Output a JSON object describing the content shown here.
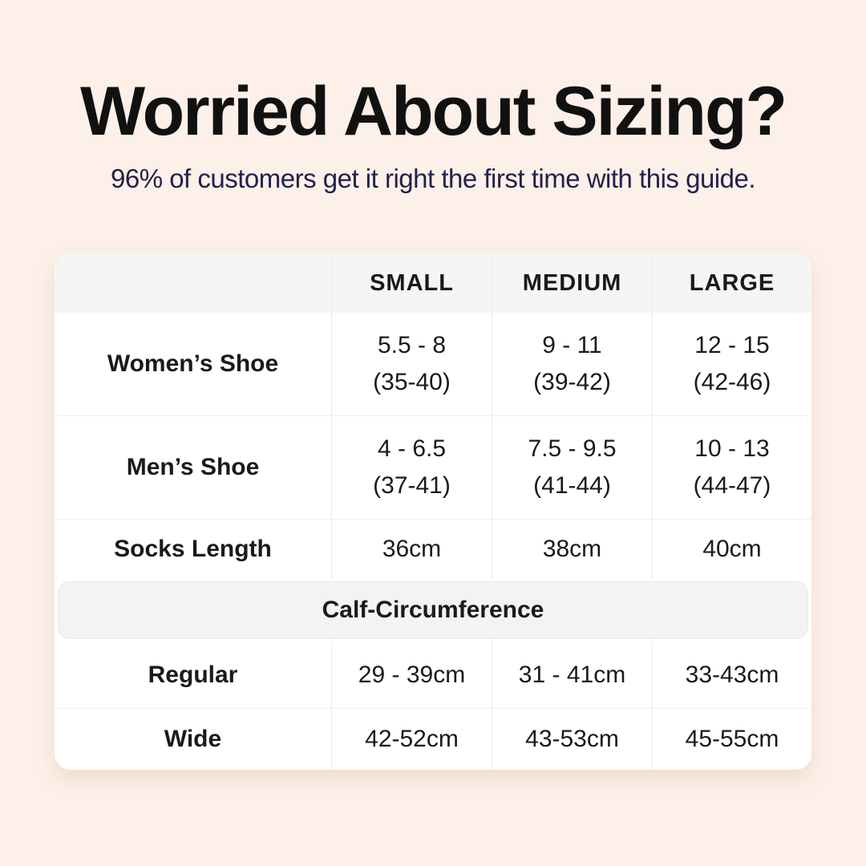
{
  "colors": {
    "page_background": "#fcf0e8",
    "card_background": "#ffffff",
    "header_row_background": "#f5f5f4",
    "section_band_background": "#f3f3f1",
    "title_color": "#111111",
    "subtitle_color": "#24214a",
    "text_color": "#1a1a1a",
    "divider_color": "#ececec"
  },
  "header": {
    "title": "Worried About Sizing?",
    "subtitle": "96% of customers get it right the first time with this guide."
  },
  "table": {
    "column_headers": [
      "",
      "SMALL",
      "MEDIUM",
      "LARGE"
    ],
    "rows": [
      {
        "label": "Women’s Shoe",
        "cells": [
          [
            "5.5 - 8",
            "(35-40)"
          ],
          [
            "9 - 11",
            "(39-42)"
          ],
          [
            "12 - 15",
            "(42-46)"
          ]
        ]
      },
      {
        "label": "Men’s Shoe",
        "cells": [
          [
            "4 - 6.5",
            "(37-41)"
          ],
          [
            "7.5 - 9.5",
            "(41-44)"
          ],
          [
            "10 - 13",
            "(44-47)"
          ]
        ]
      },
      {
        "label": "Socks Length",
        "cells": [
          [
            "36cm"
          ],
          [
            "38cm"
          ],
          [
            "40cm"
          ]
        ]
      }
    ],
    "section_header": "Calf-Circumference",
    "section_rows": [
      {
        "label": "Regular",
        "cells": [
          [
            "29 - 39cm"
          ],
          [
            "31 - 41cm"
          ],
          [
            "33-43cm"
          ]
        ]
      },
      {
        "label": "Wide",
        "cells": [
          [
            "42-52cm"
          ],
          [
            "43-53cm"
          ],
          [
            "45-55cm"
          ]
        ]
      }
    ]
  },
  "chart_data": {
    "type": "table",
    "title": "Worried About Sizing?",
    "subtitle": "96% of customers get it right the first time with this guide.",
    "columns": [
      "",
      "SMALL",
      "MEDIUM",
      "LARGE"
    ],
    "rows": [
      [
        "Women’s Shoe",
        "5.5 - 8 (35-40)",
        "9 - 11 (39-42)",
        "12 - 15 (42-46)"
      ],
      [
        "Men’s Shoe",
        "4 - 6.5 (37-41)",
        "7.5 - 9.5 (41-44)",
        "10 - 13 (44-47)"
      ],
      [
        "Socks Length",
        "36cm",
        "38cm",
        "40cm"
      ],
      [
        "Calf-Circumference",
        "",
        "",
        ""
      ],
      [
        "Regular",
        "29 - 39cm",
        "31 - 41cm",
        "33-43cm"
      ],
      [
        "Wide",
        "42-52cm",
        "43-53cm",
        "45-55cm"
      ]
    ]
  }
}
